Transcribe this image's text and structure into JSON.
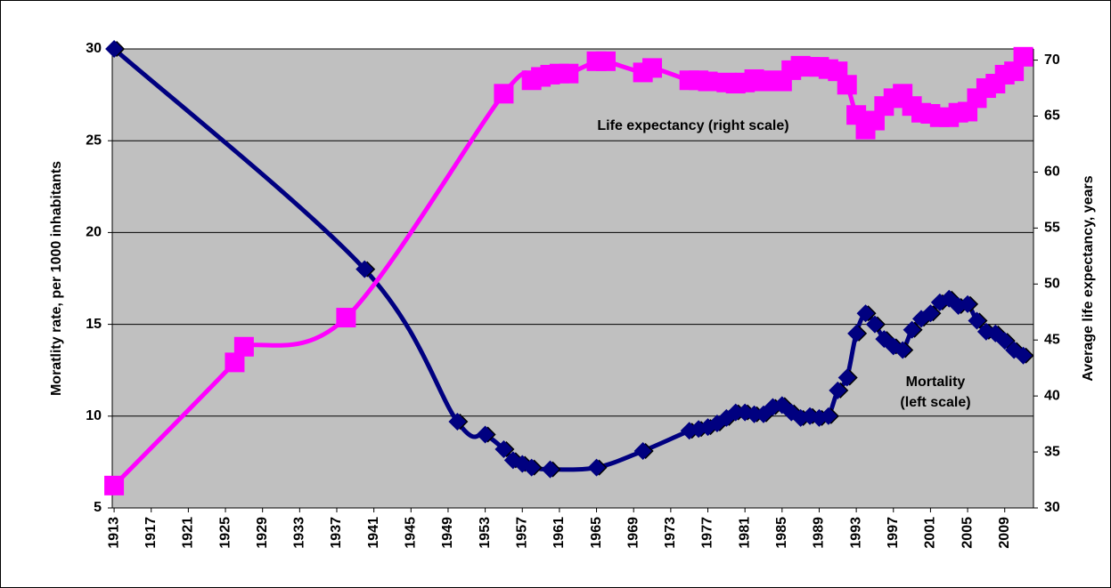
{
  "chart_data": {
    "type": "line",
    "y_label": "Moratlity rate, per 1000 inhabitants",
    "y2_label": "Average life expectancy, years",
    "annotations": [
      "Life expectancy  (right scale)",
      "Mortality",
      "(left scale)"
    ],
    "xlim": [
      1912.8,
      2012.1
    ],
    "xticks": [
      1913,
      1917,
      1921,
      1925,
      1929,
      1933,
      1937,
      1941,
      1945,
      1949,
      1953,
      1957,
      1961,
      1965,
      1969,
      1973,
      1977,
      1981,
      1985,
      1989,
      1993,
      1997,
      2001,
      2005,
      2009
    ],
    "ylim": [
      5,
      30
    ],
    "yticks": [
      5,
      10,
      15,
      20,
      25,
      30
    ],
    "y2lim": [
      30,
      71
    ],
    "y2ticks": [
      30,
      35,
      40,
      45,
      50,
      55,
      60,
      65,
      70
    ],
    "grid": true,
    "series": [
      {
        "name": "Mortality",
        "color": "#000080",
        "marker": "diamond",
        "x": [
          1913,
          1940,
          1950,
          1953,
          1955,
          1956,
          1957,
          1958,
          1960,
          1965,
          1970,
          1975,
          1976,
          1977,
          1978,
          1979,
          1980,
          1981,
          1982,
          1983,
          1984,
          1985,
          1986,
          1987,
          1988,
          1989,
          1990,
          1991,
          1992,
          1993,
          1994,
          1995,
          1996,
          1997,
          1998,
          1999,
          2000,
          2001,
          2002,
          2003,
          2004,
          2005,
          2006,
          2007,
          2008,
          2009,
          2010,
          2011
        ],
        "values": [
          30,
          18,
          9.7,
          9.0,
          8.2,
          7.6,
          7.4,
          7.2,
          7.1,
          7.2,
          8.1,
          9.2,
          9.3,
          9.4,
          9.6,
          9.9,
          10.2,
          10.2,
          10.1,
          10.1,
          10.5,
          10.6,
          10.2,
          9.9,
          10.0,
          9.9,
          10.0,
          11.4,
          12.1,
          14.5,
          15.6,
          15.0,
          14.2,
          13.8,
          13.6,
          14.7,
          15.3,
          15.6,
          16.2,
          16.4,
          16.0,
          16.1,
          15.2,
          14.6,
          14.5,
          14.1,
          13.6,
          13.3
        ]
      },
      {
        "name": "Life expectancy",
        "color": "#ff00ff",
        "marker": "square",
        "axis": "y2",
        "x": [
          1913,
          1926,
          1927,
          1938,
          1955,
          1958,
          1959,
          1960,
          1961,
          1962,
          1965,
          1966,
          1970,
          1971,
          1975,
          1976,
          1977,
          1979,
          1980,
          1981,
          1982,
          1983,
          1984,
          1985,
          1986,
          1987,
          1988,
          1989,
          1990,
          1991,
          1992,
          1993,
          1994,
          1995,
          1996,
          1997,
          1998,
          1999,
          2000,
          2001,
          2002,
          2003,
          2004,
          2005,
          2006,
          2007,
          2008,
          2009,
          2010,
          2011
        ],
        "values": [
          32,
          43,
          44.4,
          47,
          67,
          68.2,
          68.5,
          68.7,
          68.8,
          68.8,
          69.9,
          69.9,
          68.9,
          69.3,
          68.2,
          68.2,
          68.1,
          68.0,
          67.9,
          68.0,
          68.3,
          68.1,
          68.2,
          68.1,
          69.1,
          69.5,
          69.4,
          69.4,
          69.2,
          69.0,
          67.8,
          65.1,
          63.8,
          64.6,
          65.9,
          66.6,
          67.0,
          65.9,
          65.3,
          65.2,
          64.9,
          64.9,
          65.3,
          65.4,
          66.6,
          67.5,
          67.9,
          68.7,
          69.0,
          70.3
        ]
      }
    ]
  }
}
